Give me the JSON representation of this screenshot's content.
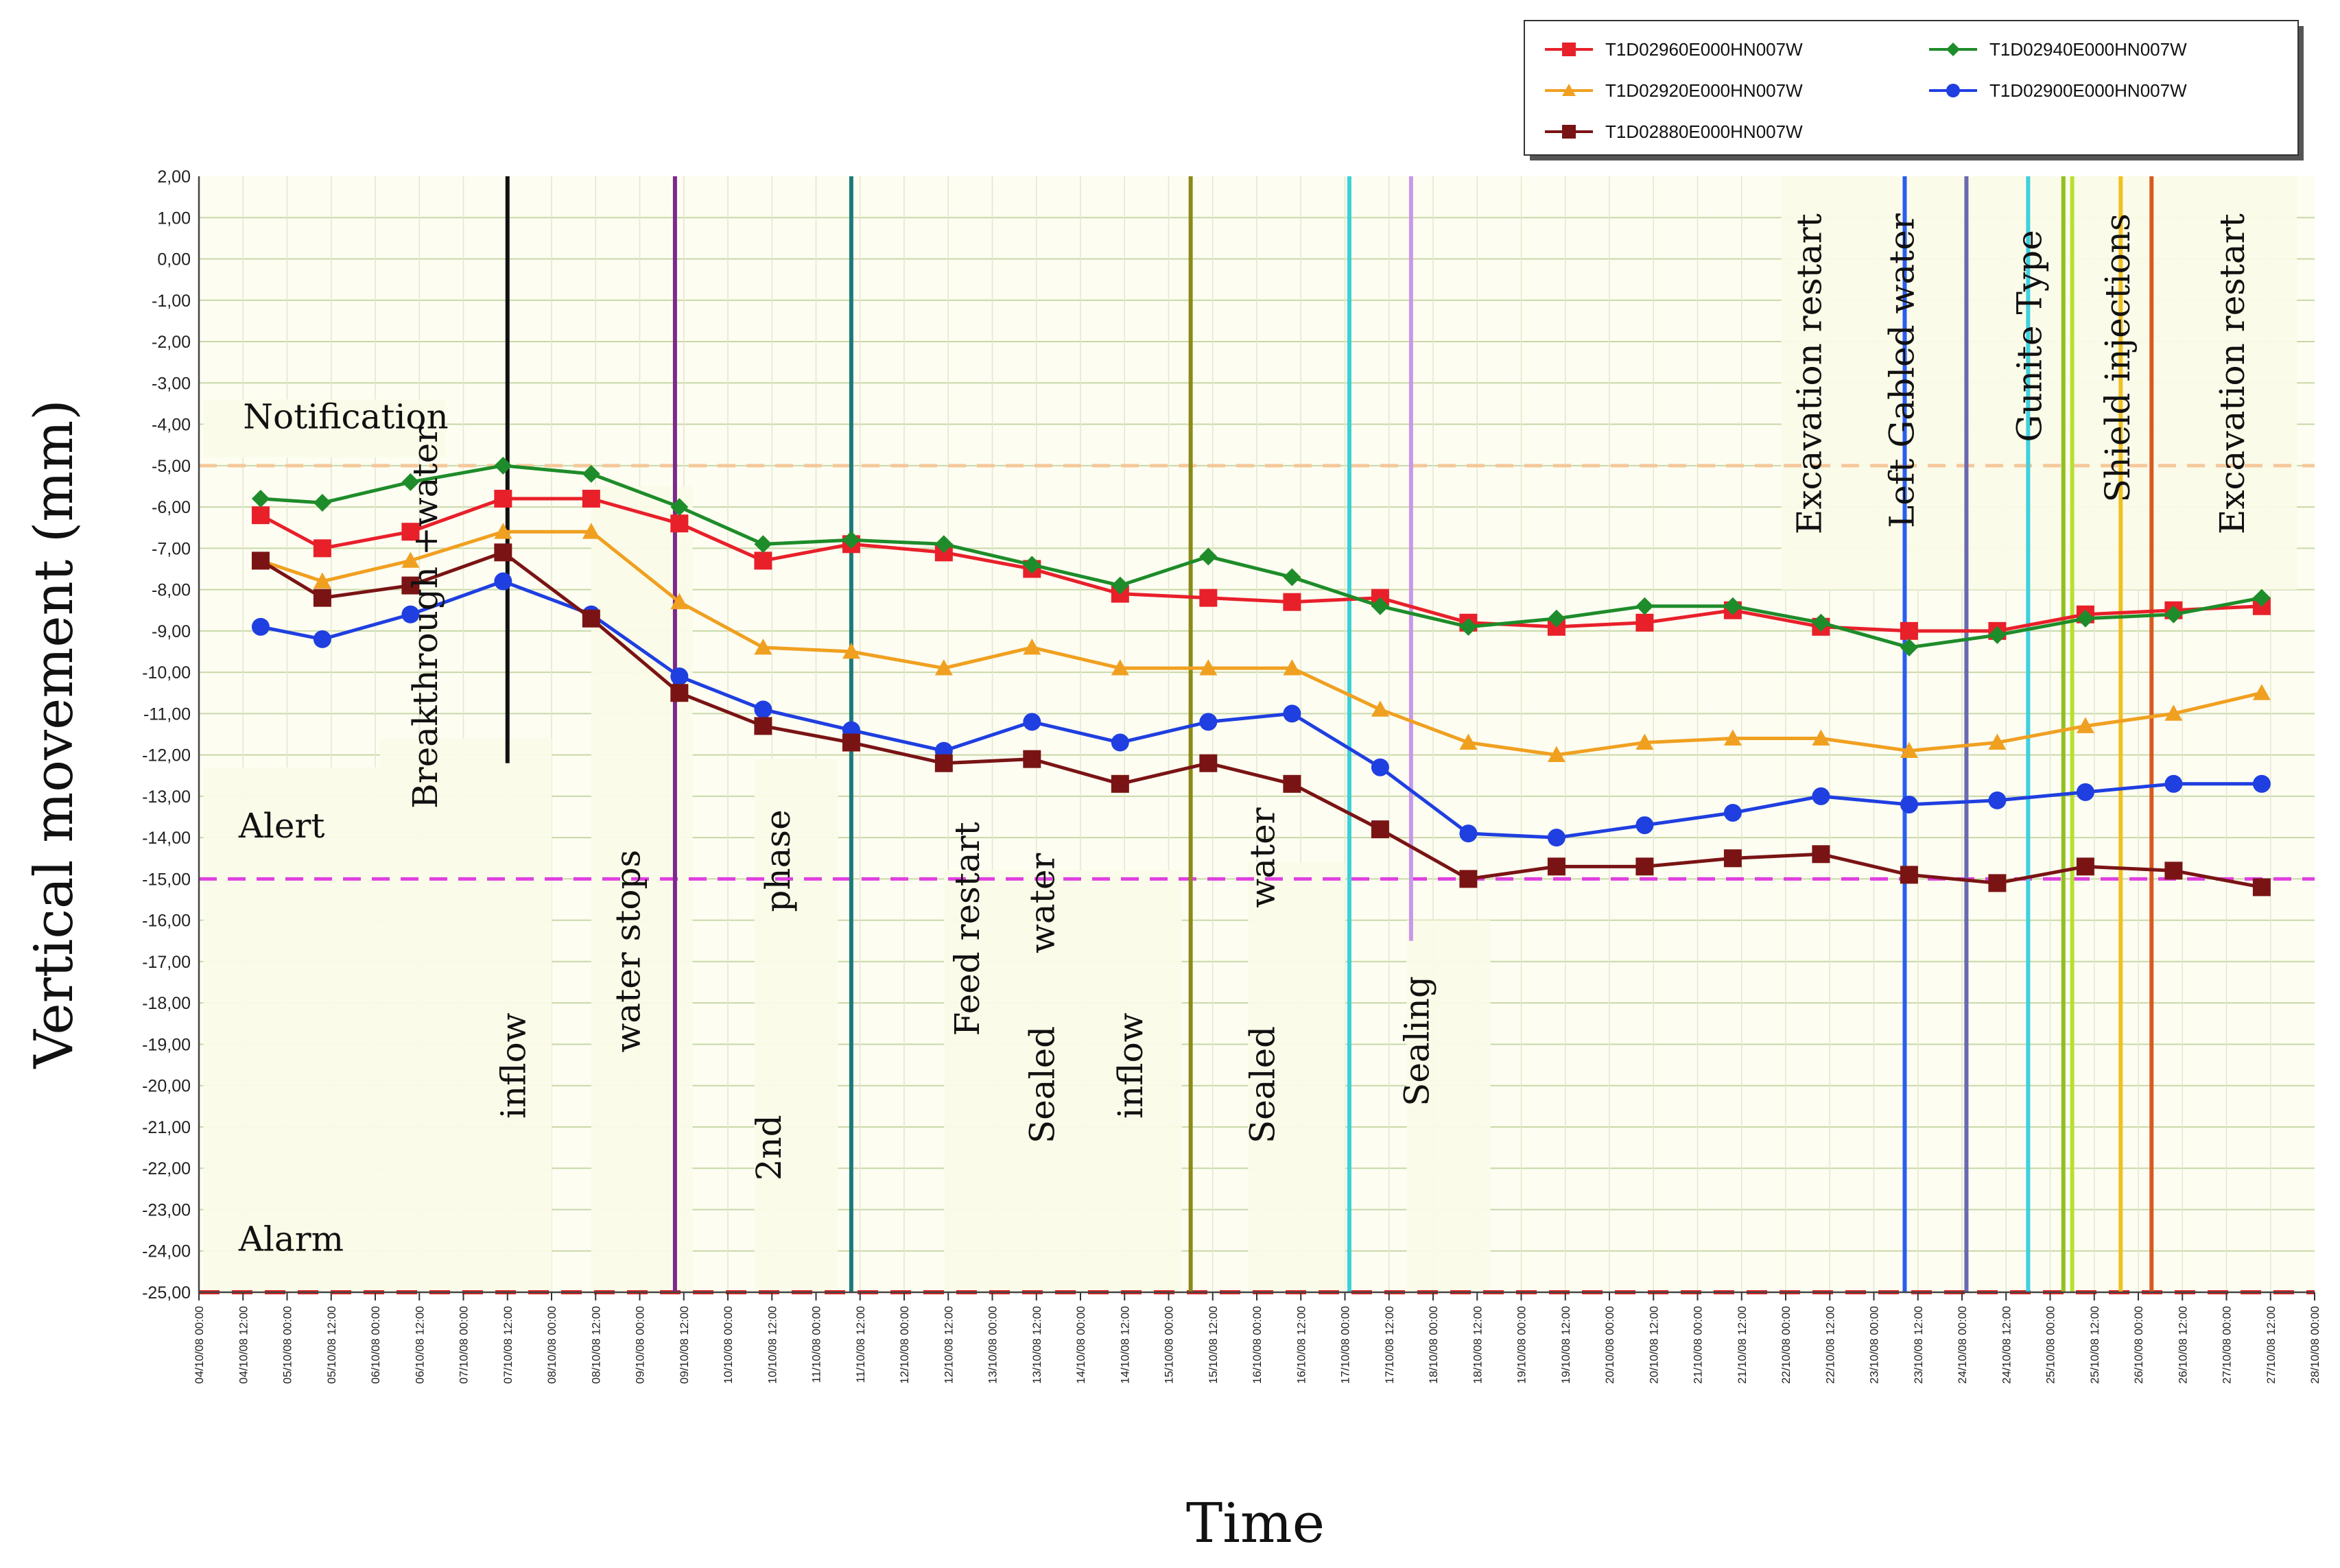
{
  "chart_data": {
    "type": "line",
    "title": "",
    "xlabel": "Time",
    "ylabel": "Vertical movement (mm)",
    "ylim": [
      -25,
      2
    ],
    "y_ticks": [
      "2,00",
      "1,00",
      "0,00",
      "-1,00",
      "-2,00",
      "-3,00",
      "-4,00",
      "-5,00",
      "-6,00",
      "-7,00",
      "-8,00",
      "-9,00",
      "-10,00",
      "-11,00",
      "-12,00",
      "-13,00",
      "-14,00",
      "-15,00",
      "-16,00",
      "-17,00",
      "-18,00",
      "-19,00",
      "-20,00",
      "-21,00",
      "-22,00",
      "-23,00",
      "-24,00",
      "-25,00"
    ],
    "x_ticks": [
      "04/10/08 00:00",
      "04/10/08 12:00",
      "05/10/08 00:00",
      "05/10/08 12:00",
      "06/10/08 00:00",
      "06/10/08 12:00",
      "07/10/08 00:00",
      "07/10/08 12:00",
      "08/10/08 00:00",
      "08/10/08 12:00",
      "09/10/08 00:00",
      "09/10/08 12:00",
      "10/10/08 00:00",
      "10/10/08 12:00",
      "11/10/08 00:00",
      "11/10/08 12:00",
      "12/10/08 00:00",
      "12/10/08 12:00",
      "13/10/08 00:00",
      "13/10/08 12:00",
      "14/10/08 00:00",
      "14/10/08 12:00",
      "15/10/08 00:00",
      "15/10/08 12:00",
      "16/10/08 00:00",
      "16/10/08 12:00",
      "17/10/08 00:00",
      "17/10/08 12:00",
      "18/10/08 00:00",
      "18/10/08 12:00",
      "19/10/08 00:00",
      "19/10/08 12:00",
      "20/10/08 00:00",
      "20/10/08 12:00",
      "21/10/08 00:00",
      "21/10/08 12:00",
      "22/10/08 00:00",
      "22/10/08 12:00",
      "23/10/08 00:00",
      "23/10/08 12:00",
      "24/10/08 00:00",
      "24/10/08 12:00",
      "25/10/08 00:00",
      "25/10/08 12:00",
      "26/10/08 00:00",
      "26/10/08 12:00",
      "27/10/08 00:00",
      "27/10/08 12:00",
      "28/10/08 00:00"
    ],
    "xlim": [
      0,
      48
    ],
    "thresholds": [
      {
        "name": "Notification",
        "value": -5,
        "color": "#f5c89a"
      },
      {
        "name": "Alert",
        "value": -15,
        "color": "#e040e0"
      },
      {
        "name": "Alarm",
        "value": -25,
        "color": "#e02020"
      }
    ],
    "series": [
      {
        "name": "T1D02960E000HN007W",
        "color": "#e8202a",
        "marker": "square",
        "x": [
          1.4,
          2.8,
          4.8,
          6.9,
          8.9,
          10.9,
          12.8,
          14.8,
          16.9,
          18.9,
          20.9,
          22.9,
          24.8,
          26.8,
          28.8,
          30.8,
          32.8,
          34.8,
          36.8,
          38.8,
          40.8,
          42.8,
          44.8,
          46.8
        ],
        "y": [
          -6.2,
          -7.0,
          -6.6,
          -5.8,
          -5.8,
          -6.4,
          -7.3,
          -6.9,
          -7.1,
          -7.5,
          -8.1,
          -8.2,
          -8.3,
          -8.2,
          -8.8,
          -8.9,
          -8.8,
          -8.5,
          -8.9,
          -9.0,
          -9.0,
          -8.6,
          -8.5,
          -8.4
        ]
      },
      {
        "name": "T1D02940E000HN007W",
        "color": "#1e8c2a",
        "marker": "diamond",
        "x": [
          1.4,
          2.8,
          4.8,
          6.9,
          8.9,
          10.9,
          12.8,
          14.8,
          16.9,
          18.9,
          20.9,
          22.9,
          24.8,
          26.8,
          28.8,
          30.8,
          32.8,
          34.8,
          36.8,
          38.8,
          40.8,
          42.8,
          44.8,
          46.8
        ],
        "y": [
          -5.8,
          -5.9,
          -5.4,
          -5.0,
          -5.2,
          -6.0,
          -6.9,
          -6.8,
          -6.9,
          -7.4,
          -7.9,
          -7.2,
          -7.7,
          -8.4,
          -8.9,
          -8.7,
          -8.4,
          -8.4,
          -8.8,
          -9.4,
          -9.1,
          -8.7,
          -8.6,
          -8.2
        ]
      },
      {
        "name": "T1D02920E000HN007W",
        "color": "#f0a020",
        "marker": "triangle",
        "x": [
          1.4,
          2.8,
          4.8,
          6.9,
          8.9,
          10.9,
          12.8,
          14.8,
          16.9,
          18.9,
          20.9,
          22.9,
          24.8,
          26.8,
          28.8,
          30.8,
          32.8,
          34.8,
          36.8,
          38.8,
          40.8,
          42.8,
          44.8,
          46.8
        ],
        "y": [
          -7.3,
          -7.8,
          -7.3,
          -6.6,
          -6.6,
          -8.3,
          -9.4,
          -9.5,
          -9.9,
          -9.4,
          -9.9,
          -9.9,
          -9.9,
          -10.9,
          -11.7,
          -12.0,
          -11.7,
          -11.6,
          -11.6,
          -11.9,
          -11.7,
          -11.3,
          -11.0,
          -10.5
        ]
      },
      {
        "name": "T1D02900E000HN007W",
        "color": "#1f3fe0",
        "marker": "circle",
        "x": [
          1.4,
          2.8,
          4.8,
          6.9,
          8.9,
          10.9,
          12.8,
          14.8,
          16.9,
          18.9,
          20.9,
          22.9,
          24.8,
          26.8,
          28.8,
          30.8,
          32.8,
          34.8,
          36.8,
          38.8,
          40.8,
          42.8,
          44.8,
          46.8
        ],
        "y": [
          -8.9,
          -9.2,
          -8.6,
          -7.8,
          -8.6,
          -10.1,
          -10.9,
          -11.4,
          -11.9,
          -11.2,
          -11.7,
          -11.2,
          -11.0,
          -12.3,
          -13.9,
          -14.0,
          -13.7,
          -13.4,
          -13.0,
          -13.2,
          -13.1,
          -12.9,
          -12.7,
          -12.7
        ]
      },
      {
        "name": "T1D02880E000HN007W",
        "color": "#7a1414",
        "marker": "square",
        "x": [
          1.4,
          2.8,
          4.8,
          6.9,
          8.9,
          10.9,
          12.8,
          14.8,
          16.9,
          18.9,
          20.9,
          22.9,
          24.8,
          26.8,
          28.8,
          30.8,
          32.8,
          34.8,
          36.8,
          38.8,
          40.8,
          42.8,
          44.8,
          46.8
        ],
        "y": [
          -7.3,
          -8.2,
          -7.9,
          -7.1,
          -8.7,
          -10.5,
          -11.3,
          -11.7,
          -12.2,
          -12.1,
          -12.7,
          -12.2,
          -12.7,
          -13.8,
          -15.0,
          -14.7,
          -14.7,
          -14.5,
          -14.4,
          -14.9,
          -15.1,
          -14.7,
          -14.8,
          -15.2
        ]
      }
    ],
    "event_lines": [
      {
        "x": 7.0,
        "color": "#111111",
        "top": 2.0,
        "bottom": -12.2
      },
      {
        "x": 10.8,
        "color": "#7a2a8a",
        "top": 2.0,
        "bottom": -25
      },
      {
        "x": 14.8,
        "color": "#1d7a7a",
        "top": 2.0,
        "bottom": -25
      },
      {
        "x": 22.5,
        "color": "#8a8a18",
        "top": 2.0,
        "bottom": -25
      },
      {
        "x": 26.1,
        "color": "#3cd0d8",
        "top": 2.0,
        "bottom": -25
      },
      {
        "x": 27.5,
        "color": "#c898e8",
        "top": 2.0,
        "bottom": -16.5
      },
      {
        "x": 38.7,
        "color": "#2a5ef0",
        "top": 2.0,
        "bottom": -25
      },
      {
        "x": 40.1,
        "color": "#6a6ab0",
        "top": 2.0,
        "bottom": -25
      },
      {
        "x": 41.5,
        "color": "#40d0e0",
        "top": 2.0,
        "bottom": -25
      },
      {
        "x": 42.3,
        "color": "#90c020",
        "top": 2.0,
        "bottom": -25
      },
      {
        "x": 42.5,
        "color": "#b8e030",
        "top": 2.0,
        "bottom": -25
      },
      {
        "x": 43.6,
        "color": "#f0c020",
        "top": 2.0,
        "bottom": -25
      },
      {
        "x": 44.3,
        "color": "#d85a20",
        "top": 2.0,
        "bottom": -25
      }
    ],
    "annotations": [
      {
        "text": "Notification",
        "horizontal": true,
        "x": 1.0,
        "y": -4.1
      },
      {
        "text": "Alert",
        "horizontal": true,
        "x": 0.9,
        "y": -14.0
      },
      {
        "text": "Alarm",
        "horizontal": true,
        "x": 0.9,
        "y": -24.0
      },
      {
        "text": "Breakthrough +water",
        "x": 5.4,
        "y": -13.3
      },
      {
        "text": "inflow",
        "x": 7.4,
        "y": -20.8
      },
      {
        "text": "water stops",
        "x": 10.0,
        "y": -19.2
      },
      {
        "text": "phase",
        "x": 13.4,
        "y": -15.8
      },
      {
        "text": "2nd",
        "x": 13.2,
        "y": -22.3
      },
      {
        "text": "Feed restart",
        "x": 17.7,
        "y": -18.8
      },
      {
        "text": "water",
        "x": 19.4,
        "y": -16.8
      },
      {
        "text": "Sealed",
        "x": 19.4,
        "y": -21.4
      },
      {
        "text": "inflow",
        "x": 21.4,
        "y": -20.8
      },
      {
        "text": "water",
        "x": 24.4,
        "y": -15.7
      },
      {
        "text": "Sealed",
        "x": 24.4,
        "y": -21.4
      },
      {
        "text": "Sealing",
        "x": 27.9,
        "y": -20.5
      },
      {
        "text": "Excavation restart",
        "x": 36.8,
        "y": 1.1
      },
      {
        "text": "Left Gabled water",
        "x": 38.9,
        "y": 1.1
      },
      {
        "text": "Gunite Type",
        "x": 41.8,
        "y": 0.7
      },
      {
        "text": "Shield injections",
        "x": 43.8,
        "y": 1.1
      },
      {
        "text": "Excavation restart",
        "x": 46.4,
        "y": 1.1
      }
    ],
    "legend_position": "top-right"
  }
}
